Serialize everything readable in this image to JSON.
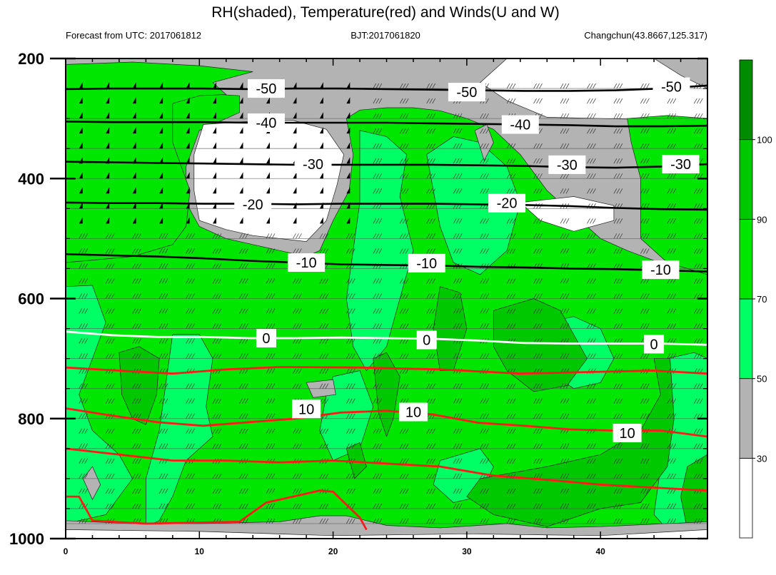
{
  "chart_data": {
    "type": "heatmap",
    "title": "RH(shaded), Temperature(red) and Winds(U and W)",
    "subtitle_left": "Forecast from UTC: 2017061812",
    "subtitle_center": "BJT:2017061820",
    "subtitle_right": "Changchun(43.8667,125.317)",
    "x_ticks": [
      "0",
      "10",
      "20",
      "30",
      "40"
    ],
    "x_tick_values": [
      0,
      10,
      20,
      30,
      40
    ],
    "xlim": [
      0,
      48
    ],
    "y_ticks": [
      "200",
      "400",
      "600",
      "800",
      "1000"
    ],
    "y_tick_values": [
      200,
      400,
      600,
      800,
      1000
    ],
    "ylim": [
      200,
      1000
    ],
    "colorbar": {
      "labels": [
        "30",
        "50",
        "70",
        "90",
        "100"
      ],
      "levels": [
        30,
        50,
        70,
        90,
        100
      ],
      "colors": [
        "#ffffff",
        "#b3b3b3",
        "#00ff64",
        "#00e600",
        "#00c800",
        "#008c00"
      ]
    },
    "temperature_contours": [
      {
        "label": "-50",
        "level": -50,
        "label_positions": [
          [
            15,
            250
          ],
          [
            30,
            256
          ],
          [
            45.3,
            247
          ]
        ],
        "pressures": [
          251,
          250,
          250,
          250,
          251,
          250,
          250,
          251,
          252,
          253,
          254,
          254,
          253,
          250,
          245
        ]
      },
      {
        "label": "-40",
        "level": -40,
        "label_positions": [
          [
            15,
            307
          ],
          [
            34,
            310
          ]
        ],
        "pressures": [
          305,
          306,
          306,
          306,
          307,
          307,
          307,
          307,
          308,
          309,
          310,
          311,
          313,
          313,
          312
        ]
      },
      {
        "label": "-30",
        "level": -30,
        "label_positions": [
          [
            18.5,
            376
          ],
          [
            37.5,
            377
          ],
          [
            46,
            376
          ]
        ],
        "pressures": [
          372,
          373,
          374,
          375,
          376,
          377,
          377,
          377,
          377,
          378,
          379,
          381,
          382,
          380,
          376
        ]
      },
      {
        "label": "-20",
        "level": -20,
        "label_positions": [
          [
            14,
            443
          ],
          [
            33,
            441
          ]
        ],
        "pressures": [
          440,
          441,
          441,
          442,
          442,
          443,
          442,
          442,
          442,
          443,
          444,
          446,
          449,
          451,
          452
        ]
      },
      {
        "label": "-10",
        "level": -10,
        "label_positions": [
          [
            18,
            540
          ],
          [
            27,
            541
          ],
          [
            44.5,
            552
          ]
        ],
        "pressures": [
          526,
          528,
          530,
          533,
          537,
          540,
          543,
          544,
          545,
          547,
          548,
          550,
          551,
          553,
          555
        ]
      },
      {
        "label": "0",
        "level": 0,
        "label_positions": [
          [
            15,
            666
          ],
          [
            27,
            669
          ],
          [
            44,
            676
          ]
        ],
        "pressures": [
          655,
          661,
          664,
          664,
          666,
          666,
          665,
          666,
          667,
          670,
          674,
          675,
          675,
          675,
          677
        ]
      },
      {
        "label": "10",
        "level": 10,
        "label_positions": [
          [
            18,
            784
          ],
          [
            26,
            789
          ],
          [
            42,
            824
          ]
        ],
        "pressures": [
          783,
          795,
          806,
          812,
          806,
          800,
          790,
          787,
          793,
          807,
          812,
          818,
          820,
          820,
          830
        ]
      }
    ],
    "isobar_lines_hpa": [
      250,
      300,
      350,
      400,
      450,
      500,
      550,
      600,
      650,
      700,
      750,
      800,
      850,
      900,
      950,
      975
    ]
  }
}
